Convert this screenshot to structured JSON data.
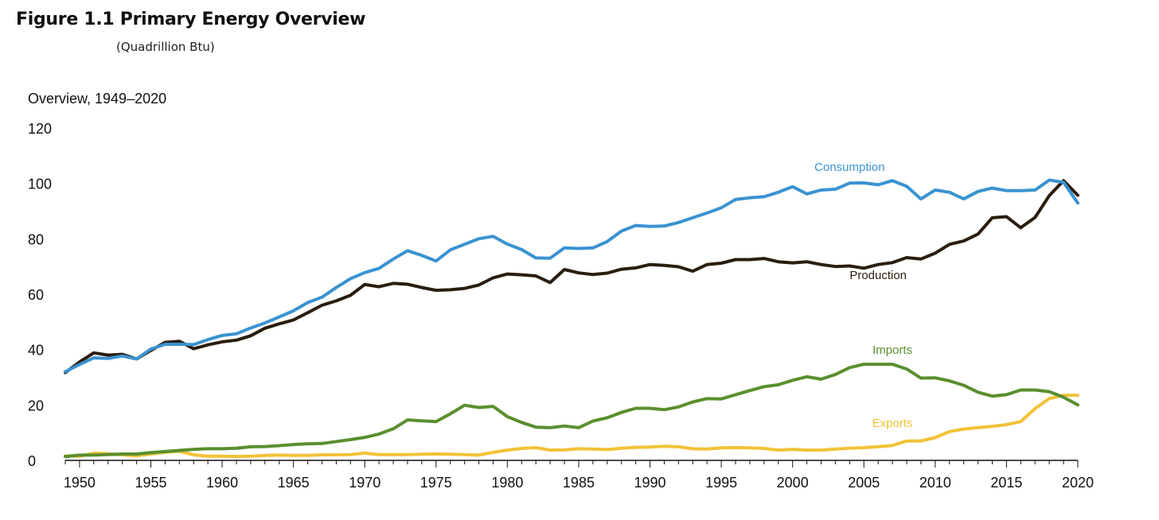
{
  "figure": {
    "title": "Figure 1.1  Primary Energy Overview",
    "subtitle": "(Quadrillion Btu)"
  },
  "colors": {
    "Consumption": "#3a93d1",
    "Production": "#2b1d0e",
    "Imports": "#5a8f2e",
    "Exports": "#f2c237"
  },
  "chart_data": {
    "type": "line",
    "title": "Overview, 1949–2020",
    "xlabel": "",
    "ylabel": "",
    "xlim": [
      1949,
      2020
    ],
    "ylim": [
      0,
      120
    ],
    "yticks": [
      0,
      20,
      40,
      60,
      80,
      100,
      120
    ],
    "xticks": [
      1950,
      1955,
      1960,
      1965,
      1970,
      1975,
      1980,
      1985,
      1990,
      1995,
      2000,
      2005,
      2010,
      2015,
      2020
    ],
    "grid": false,
    "legend": "inline labels",
    "x": [
      1949,
      1950,
      1951,
      1952,
      1953,
      1954,
      1955,
      1956,
      1957,
      1958,
      1959,
      1960,
      1961,
      1962,
      1963,
      1964,
      1965,
      1966,
      1967,
      1968,
      1969,
      1970,
      1971,
      1972,
      1973,
      1974,
      1975,
      1976,
      1977,
      1978,
      1979,
      1980,
      1981,
      1982,
      1983,
      1984,
      1985,
      1986,
      1987,
      1988,
      1989,
      1990,
      1991,
      1992,
      1993,
      1994,
      1995,
      1996,
      1997,
      1998,
      1999,
      2000,
      2001,
      2002,
      2003,
      2004,
      2005,
      2006,
      2007,
      2008,
      2009,
      2010,
      2011,
      2012,
      2013,
      2014,
      2015,
      2016,
      2017,
      2018,
      2019,
      2020
    ],
    "series": [
      {
        "name": "Consumption",
        "values": [
          32.0,
          34.6,
          37.0,
          36.8,
          37.7,
          36.6,
          40.2,
          41.9,
          41.9,
          41.8,
          43.6,
          45.1,
          45.7,
          47.8,
          49.6,
          51.8,
          54.0,
          57.0,
          58.9,
          62.4,
          65.6,
          67.8,
          69.3,
          72.7,
          75.7,
          74.0,
          72.0,
          76.0,
          78.0,
          80.0,
          80.9,
          78.1,
          76.1,
          73.1,
          73.0,
          76.7,
          76.5,
          76.7,
          79.0,
          82.8,
          84.8,
          84.5,
          84.6,
          85.9,
          87.6,
          89.3,
          91.2,
          94.2,
          94.8,
          95.2,
          96.8,
          98.8,
          96.2,
          97.6,
          97.9,
          100.1,
          100.2,
          99.5,
          101.0,
          99.0,
          94.4,
          97.6,
          96.8,
          94.4,
          97.1,
          98.3,
          97.4,
          97.4,
          97.6,
          101.2,
          100.4,
          92.9
        ]
      },
      {
        "name": "Production",
        "values": [
          31.7,
          35.5,
          38.8,
          38.0,
          38.3,
          36.6,
          39.7,
          42.6,
          43.0,
          40.3,
          41.7,
          42.8,
          43.4,
          45.0,
          47.7,
          49.3,
          50.7,
          53.3,
          56.0,
          57.6,
          59.6,
          63.5,
          62.7,
          63.9,
          63.6,
          62.4,
          61.4,
          61.6,
          62.1,
          63.3,
          65.9,
          67.3,
          67.0,
          66.6,
          64.2,
          68.9,
          67.7,
          67.1,
          67.6,
          69.0,
          69.5,
          70.7,
          70.4,
          69.9,
          68.3,
          70.7,
          71.2,
          72.5,
          72.5,
          72.9,
          71.7,
          71.3,
          71.7,
          70.7,
          70.0,
          70.2,
          69.4,
          70.7,
          71.4,
          73.2,
          72.7,
          74.8,
          78.0,
          79.2,
          81.7,
          87.6,
          88.0,
          84.0,
          87.7,
          95.6,
          101.0,
          95.7
        ]
      },
      {
        "name": "Imports",
        "values": [
          1.4,
          1.9,
          1.9,
          2.1,
          2.3,
          2.3,
          2.8,
          3.2,
          3.6,
          4.0,
          4.2,
          4.2,
          4.4,
          4.9,
          5.0,
          5.3,
          5.7,
          6.0,
          6.1,
          6.8,
          7.5,
          8.3,
          9.5,
          11.4,
          14.6,
          14.3,
          14.0,
          16.8,
          19.9,
          19.1,
          19.5,
          15.8,
          13.7,
          12.0,
          11.8,
          12.4,
          11.8,
          14.2,
          15.4,
          17.3,
          18.8,
          18.8,
          18.3,
          19.3,
          21.1,
          22.3,
          22.2,
          23.7,
          25.2,
          26.6,
          27.3,
          28.9,
          30.2,
          29.3,
          31.0,
          33.5,
          34.7,
          34.7,
          34.7,
          33.0,
          29.7,
          29.8,
          28.7,
          27.1,
          24.6,
          23.2,
          23.7,
          25.4,
          25.4,
          24.8,
          22.8,
          20.0
        ]
      },
      {
        "name": "Exports",
        "values": [
          1.6,
          1.5,
          2.6,
          2.4,
          2.0,
          1.7,
          2.3,
          2.9,
          3.3,
          2.0,
          1.5,
          1.5,
          1.4,
          1.5,
          1.8,
          1.9,
          1.8,
          1.8,
          2.0,
          2.0,
          2.1,
          2.6,
          2.1,
          2.1,
          2.1,
          2.2,
          2.3,
          2.2,
          2.1,
          1.9,
          2.9,
          3.7,
          4.3,
          4.6,
          3.7,
          3.8,
          4.2,
          4.1,
          3.9,
          4.4,
          4.7,
          4.8,
          5.1,
          4.9,
          4.2,
          4.1,
          4.5,
          4.6,
          4.5,
          4.3,
          3.7,
          4.0,
          3.7,
          3.7,
          4.1,
          4.4,
          4.6,
          4.9,
          5.4,
          7.0,
          7.0,
          8.2,
          10.4,
          11.3,
          11.8,
          12.3,
          12.9,
          14.0,
          18.7,
          22.3,
          23.5,
          23.5
        ]
      }
    ],
    "series_labels": {
      "Consumption": "Consumption",
      "Production": "Production",
      "Imports": "Imports",
      "Exports": "Exports"
    }
  }
}
